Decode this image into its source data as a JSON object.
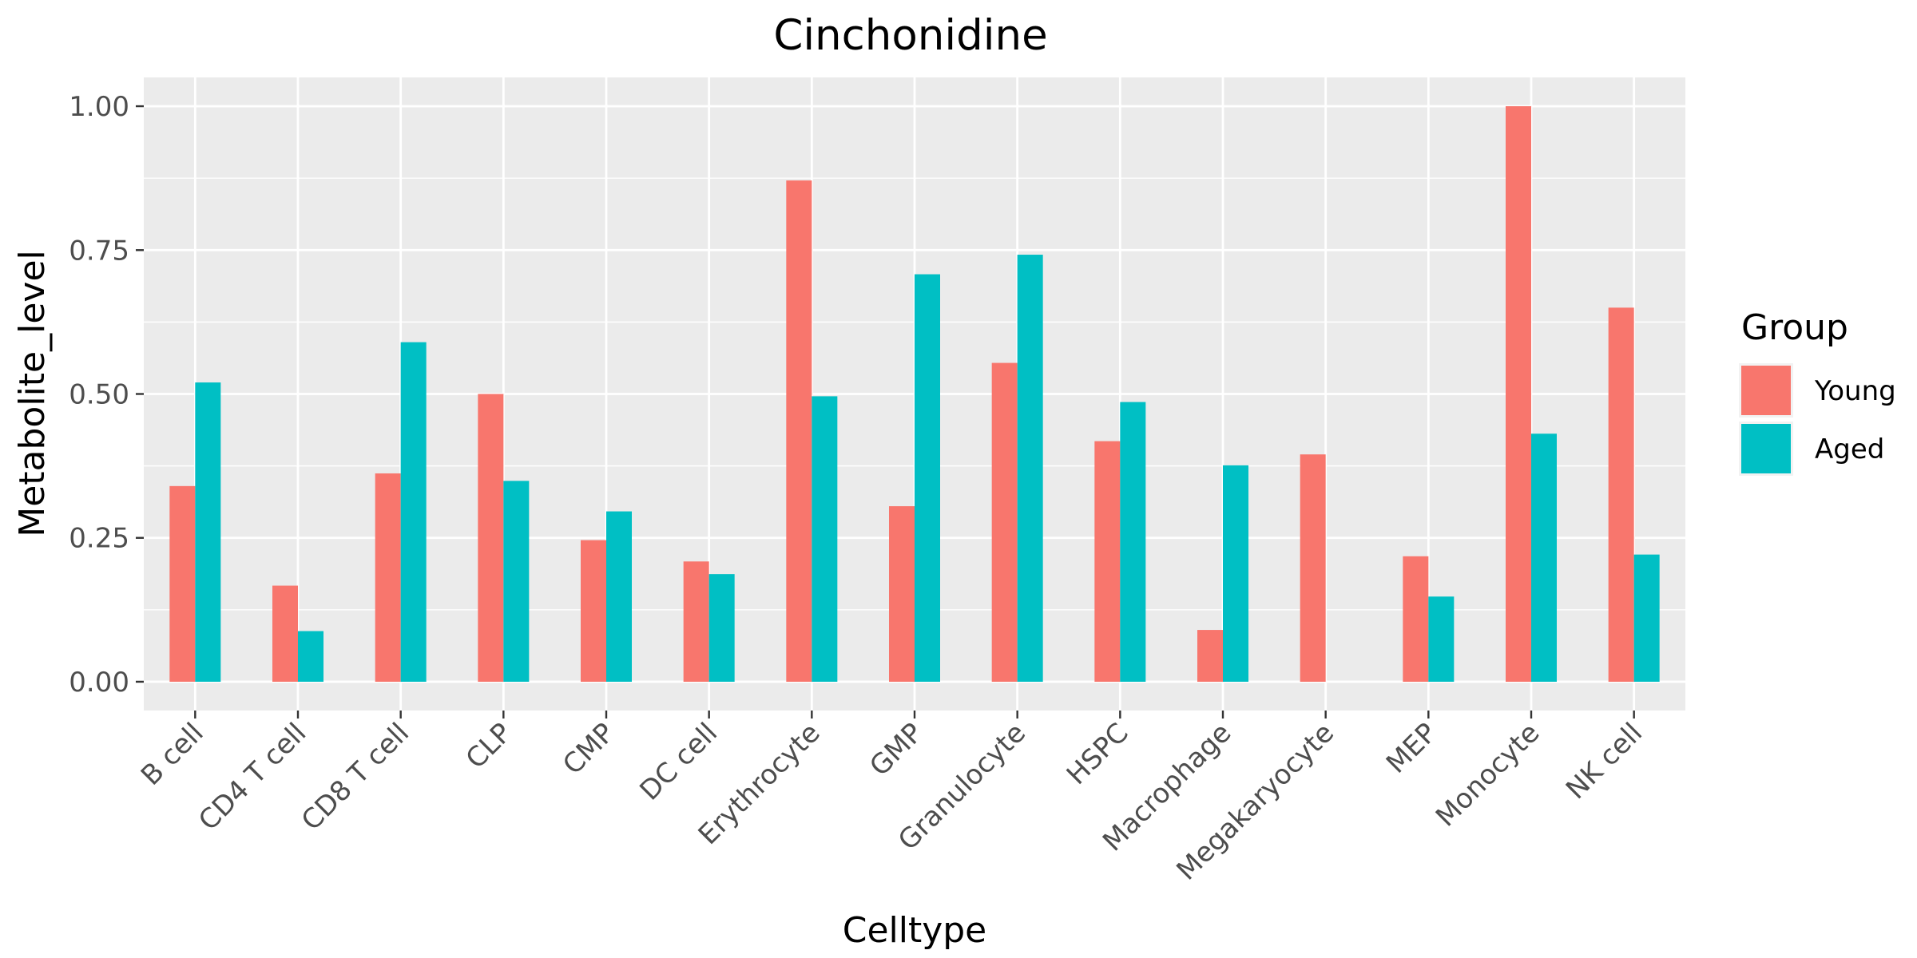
{
  "chart_data": {
    "type": "bar",
    "title": "Cinchonidine",
    "xlabel": "Celltype",
    "ylabel": "Metabolite_level",
    "ylim": [
      -0.05,
      1.05
    ],
    "yticks": [
      0,
      0.25,
      0.5,
      0.75,
      1.0
    ],
    "ytick_labels": [
      "0.00",
      "0.25",
      "0.50",
      "0.75",
      "1.00"
    ],
    "grid": true,
    "legend": {
      "title": "Group",
      "position": "right"
    },
    "categories": [
      "B cell",
      "CD4 T cell",
      "CD8 T cell",
      "CLP",
      "CMP",
      "DC cell",
      "Erythrocyte",
      "GMP",
      "Granulocyte",
      "HSPC",
      "Macrophage",
      "Megakaryocyte",
      "MEP",
      "Monocyte",
      "NK cell"
    ],
    "series": [
      {
        "name": "Young",
        "color": "#F8766D",
        "values": [
          0.34,
          0.167,
          0.362,
          0.5,
          0.246,
          0.209,
          0.871,
          0.305,
          0.554,
          0.418,
          0.09,
          0.395,
          0.218,
          1.0,
          0.65
        ]
      },
      {
        "name": "Aged",
        "color": "#00BFC4",
        "values": [
          0.52,
          0.088,
          0.59,
          0.349,
          0.296,
          0.187,
          0.496,
          0.708,
          0.742,
          0.486,
          0.376,
          0.0,
          0.148,
          0.431,
          0.221
        ]
      }
    ]
  }
}
